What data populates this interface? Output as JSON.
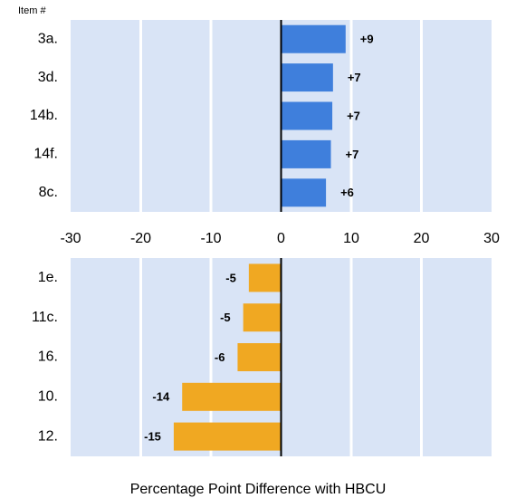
{
  "chart_data": [
    {
      "type": "barh",
      "annotation": "Item #",
      "categories": [
        "3a.",
        "3d.",
        "14b.",
        "14f.",
        "8c."
      ],
      "values": [
        9.2,
        7.4,
        7.3,
        7.1,
        6.4
      ],
      "value_labels": [
        "+9",
        "+7",
        "+7",
        "+7",
        "+6"
      ],
      "color": "#3f7fdc",
      "xlim": [
        -30,
        30
      ],
      "xticks": [
        -30,
        -20,
        -10,
        0,
        10,
        20,
        30
      ],
      "grid": true
    },
    {
      "type": "barh",
      "xlabel": "Percentage Point Difference with HBCU",
      "categories": [
        "1e.",
        "11c.",
        "16.",
        "10.",
        "12."
      ],
      "values": [
        -4.6,
        -5.4,
        -6.2,
        -14.1,
        -15.3
      ],
      "value_labels": [
        "-5",
        "-5",
        "-6",
        "-14",
        "-15"
      ],
      "color": "#f0a822",
      "xlim": [
        -30,
        30
      ],
      "grid": true
    }
  ]
}
